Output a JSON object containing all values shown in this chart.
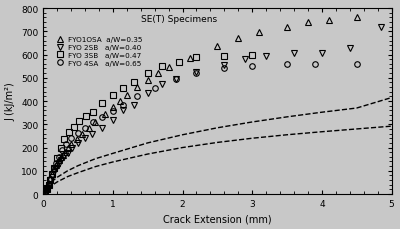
{
  "title": "SE(T) Specimens",
  "xlabel": "Crack Extension (mm)",
  "ylabel": "J (kJ/m²)",
  "xlim": [
    0.0,
    5.0
  ],
  "ylim": [
    0,
    800
  ],
  "xticks": [
    0.0,
    1.0,
    2.0,
    3.0,
    4.0,
    5.0
  ],
  "yticks": [
    0,
    100,
    200,
    300,
    400,
    500,
    600,
    700,
    800
  ],
  "series0_x": [
    0.03,
    0.05,
    0.08,
    0.1,
    0.12,
    0.15,
    0.18,
    0.2,
    0.22,
    0.25,
    0.28,
    0.32,
    0.36,
    0.4,
    0.48,
    0.56,
    0.65,
    0.75,
    0.88,
    1.0,
    1.1,
    1.2,
    1.35,
    1.5,
    1.65,
    1.8,
    2.1,
    2.5,
    2.8,
    3.1,
    3.5,
    3.8,
    4.1,
    4.5
  ],
  "series0_y": [
    15,
    25,
    45,
    70,
    85,
    110,
    125,
    135,
    145,
    160,
    170,
    180,
    200,
    215,
    235,
    260,
    285,
    310,
    345,
    375,
    400,
    425,
    460,
    490,
    520,
    545,
    585,
    635,
    670,
    695,
    720,
    740,
    750,
    760
  ],
  "series1_x": [
    0.03,
    0.05,
    0.08,
    0.1,
    0.12,
    0.15,
    0.18,
    0.22,
    0.26,
    0.3,
    0.35,
    0.42,
    0.5,
    0.6,
    0.7,
    0.85,
    1.0,
    1.15,
    1.3,
    1.5,
    1.7,
    1.9,
    2.2,
    2.6,
    2.9,
    3.2,
    3.6,
    4.0,
    4.4,
    4.85
  ],
  "series1_y": [
    15,
    25,
    40,
    60,
    75,
    95,
    110,
    130,
    148,
    162,
    175,
    200,
    220,
    240,
    258,
    285,
    320,
    360,
    385,
    435,
    475,
    495,
    525,
    555,
    580,
    595,
    605,
    605,
    630,
    720
  ],
  "series2_x": [
    0.03,
    0.05,
    0.08,
    0.1,
    0.12,
    0.15,
    0.2,
    0.25,
    0.3,
    0.37,
    0.44,
    0.52,
    0.62,
    0.72,
    0.85,
    1.0,
    1.15,
    1.3,
    1.5,
    1.7,
    1.95,
    2.2,
    2.6,
    3.0
  ],
  "series2_y": [
    10,
    20,
    40,
    60,
    85,
    110,
    155,
    200,
    235,
    265,
    290,
    315,
    335,
    355,
    390,
    425,
    455,
    480,
    520,
    550,
    570,
    590,
    595,
    600
  ],
  "series3_x": [
    0.01,
    0.03,
    0.05,
    0.08,
    0.1,
    0.12,
    0.15,
    0.18,
    0.22,
    0.27,
    0.33,
    0.4,
    0.5,
    0.6,
    0.72,
    0.85,
    1.0,
    1.15,
    1.35,
    1.6,
    1.9,
    2.2,
    2.6,
    3.0,
    3.5,
    3.9,
    4.5
  ],
  "series3_y": [
    5,
    12,
    25,
    45,
    65,
    85,
    110,
    132,
    160,
    188,
    215,
    240,
    263,
    285,
    308,
    332,
    358,
    382,
    420,
    458,
    495,
    522,
    542,
    552,
    558,
    560,
    558
  ],
  "dashed1_x": [
    0.0,
    0.05,
    0.1,
    0.2,
    0.35,
    0.5,
    0.75,
    1.0,
    1.5,
    2.0,
    2.5,
    3.0,
    3.5,
    4.0,
    4.5,
    5.0
  ],
  "dashed1_y": [
    0,
    28,
    48,
    72,
    100,
    122,
    152,
    175,
    220,
    255,
    285,
    310,
    332,
    352,
    370,
    415
  ],
  "dashed2_x": [
    0.0,
    0.05,
    0.1,
    0.2,
    0.35,
    0.5,
    0.75,
    1.0,
    1.5,
    2.0,
    2.5,
    3.0,
    3.5,
    4.0,
    4.5,
    5.0
  ],
  "dashed2_y": [
    0,
    18,
    32,
    52,
    75,
    92,
    118,
    138,
    172,
    200,
    222,
    240,
    255,
    268,
    280,
    292
  ],
  "marker_color": "black",
  "marker_size": 4,
  "marker_facecolor": "none",
  "bg_color": "#c8c8c8",
  "plot_bg_color": "#c8c8c8"
}
